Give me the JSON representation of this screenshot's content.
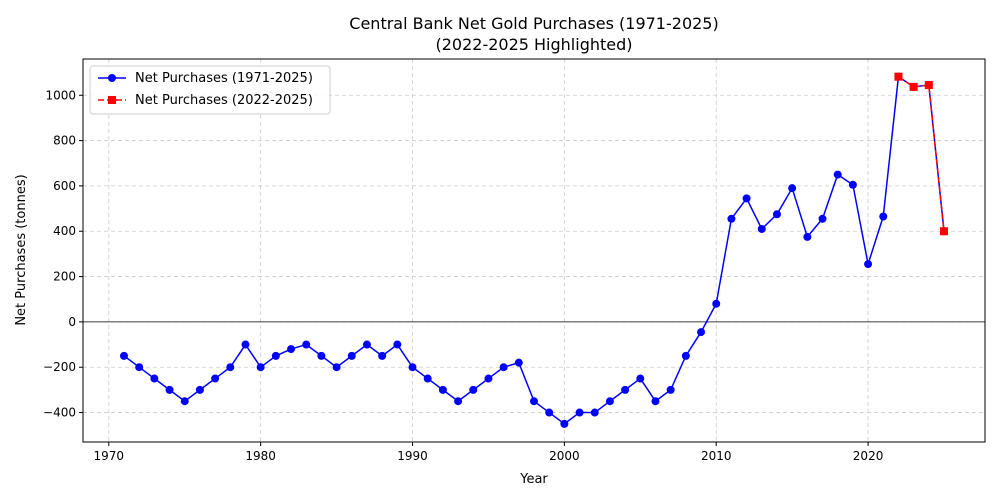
{
  "chart_data": {
    "type": "line",
    "title_line1": "Central Bank Net Gold Purchases (1971-2025)",
    "title_line2": "(2022-2025 Highlighted)",
    "xlabel": "Year",
    "ylabel": "Net Purchases (tonnes)",
    "xlim": [
      1968.3,
      2027.7
    ],
    "ylim": [
      -530,
      1160
    ],
    "xticks": [
      1970,
      1980,
      1990,
      2000,
      2010,
      2020
    ],
    "yticks": [
      -400,
      -200,
      0,
      200,
      400,
      600,
      800,
      1000
    ],
    "grid": true,
    "zero_line": true,
    "legend_position": "upper-left",
    "series": [
      {
        "name": "Net Purchases (1971-2025)",
        "color": "#0000ff",
        "marker": "circle",
        "linestyle": "solid",
        "x": [
          1971,
          1972,
          1973,
          1974,
          1975,
          1976,
          1977,
          1978,
          1979,
          1980,
          1981,
          1982,
          1983,
          1984,
          1985,
          1986,
          1987,
          1988,
          1989,
          1990,
          1991,
          1992,
          1993,
          1994,
          1995,
          1996,
          1997,
          1998,
          1999,
          2000,
          2001,
          2002,
          2003,
          2004,
          2005,
          2006,
          2007,
          2008,
          2009,
          2010,
          2011,
          2012,
          2013,
          2014,
          2015,
          2016,
          2017,
          2018,
          2019,
          2020,
          2021,
          2022,
          2023,
          2024,
          2025
        ],
        "y": [
          -150,
          -200,
          -250,
          -300,
          -350,
          -300,
          -250,
          -200,
          -100,
          -200,
          -150,
          -120,
          -100,
          -150,
          -200,
          -150,
          -100,
          -150,
          -100,
          -200,
          -250,
          -300,
          -350,
          -300,
          -250,
          -200,
          -180,
          -350,
          -400,
          -450,
          -400,
          -400,
          -350,
          -300,
          -250,
          -350,
          -300,
          -150,
          -45,
          80,
          455,
          545,
          410,
          475,
          590,
          375,
          455,
          650,
          605,
          255,
          465,
          1082,
          1037,
          1045,
          400
        ]
      },
      {
        "name": "Net Purchases (2022-2025)",
        "color": "#ff0000",
        "marker": "square",
        "linestyle": "dashed",
        "x": [
          2022,
          2023,
          2024,
          2025
        ],
        "y": [
          1082,
          1037,
          1045,
          400
        ]
      }
    ]
  }
}
